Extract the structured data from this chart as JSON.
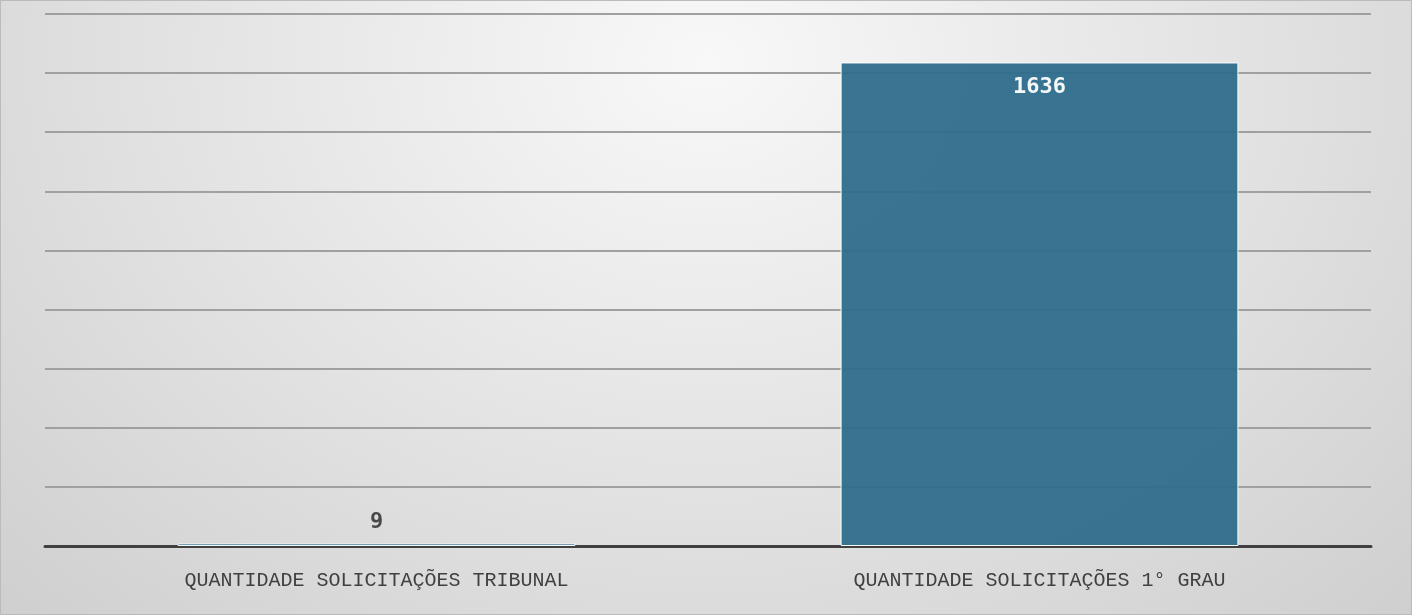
{
  "chart_data": {
    "type": "bar",
    "categories": [
      "QUANTIDADE SOLICITAÇÕES TRIBUNAL",
      "QUANTIDADE SOLICITAÇÕES 1° GRAU"
    ],
    "values": [
      9,
      1636
    ],
    "color": "#2e6e8c",
    "data_labels": true,
    "ylim": [
      0,
      1800
    ],
    "yticks": [
      {
        "value": 0,
        "label": null
      },
      {
        "value": 200,
        "label": null
      },
      {
        "value": 400,
        "label": null
      },
      {
        "value": 600,
        "label": null
      },
      {
        "value": 800,
        "label": null
      },
      {
        "value": 1000,
        "label": null
      },
      {
        "value": 1200,
        "label": null
      },
      {
        "value": 1400,
        "label": null
      },
      {
        "value": 1600,
        "label": null
      },
      {
        "value": 1800,
        "label": null
      }
    ],
    "grid": "y",
    "tick_labels": "x"
  }
}
